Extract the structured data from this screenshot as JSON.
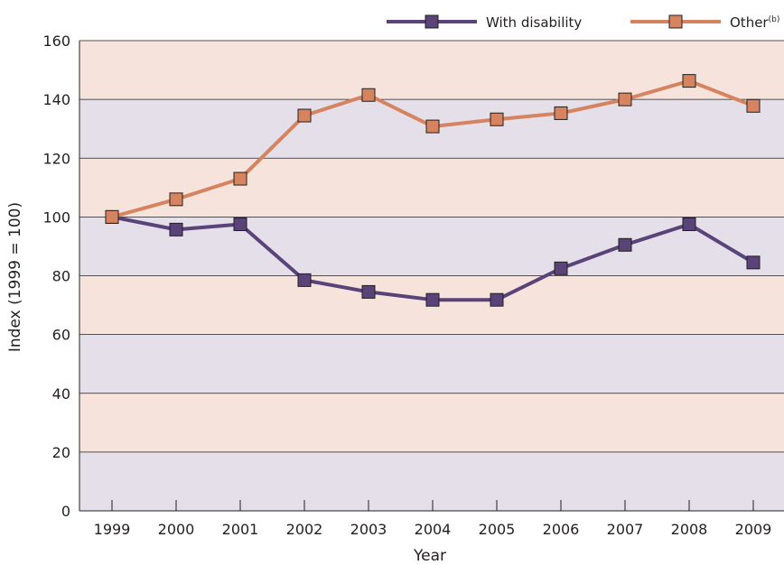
{
  "chart_data": {
    "type": "line",
    "title": "",
    "xlabel": "Year",
    "ylabel": "Index (1999 = 100)",
    "categories": [
      "1999",
      "2000",
      "2001",
      "2002",
      "2003",
      "2004",
      "2005",
      "2006",
      "2007",
      "2008",
      "2009"
    ],
    "ylim": [
      0,
      160
    ],
    "yticks": [
      0,
      20,
      40,
      60,
      80,
      100,
      120,
      140,
      160
    ],
    "grid": true,
    "legend_position": "top-right",
    "band_colors": [
      "#e4dfe9",
      "#f6e4dc"
    ],
    "series": [
      {
        "name": "With disability",
        "color": "#5a4379",
        "values": [
          100,
          95.7,
          97.5,
          78.5,
          74.5,
          71.8,
          71.8,
          82.5,
          90.5,
          97.5,
          84.5
        ]
      },
      {
        "name": "Other",
        "name_sup": "(b)",
        "color": "#d5845f",
        "values": [
          100,
          106,
          113,
          134.5,
          141.5,
          130.8,
          133.2,
          135.3,
          140,
          146.3,
          137.8
        ]
      }
    ]
  }
}
